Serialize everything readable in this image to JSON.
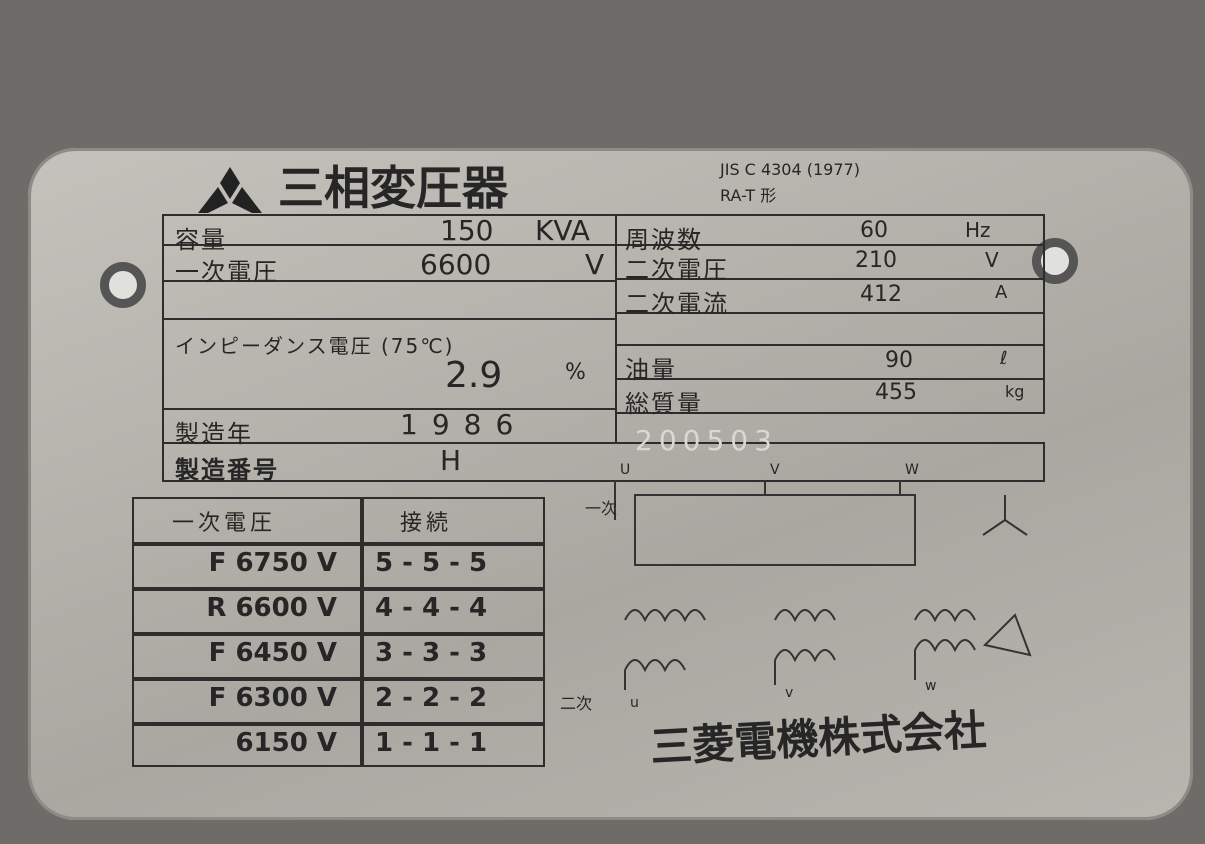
{
  "header": {
    "title": "三相変圧器",
    "standard": "JIS C 4304 (1977)",
    "model": "RA-T 形"
  },
  "ratings": {
    "capacity": {
      "label": "容量",
      "value": "150",
      "unit": "KVA"
    },
    "frequency": {
      "label": "周波数",
      "value": "60",
      "unit": "Hz"
    },
    "primary_voltage": {
      "label": "一次電圧",
      "value": "6600",
      "unit": "V"
    },
    "secondary_voltage": {
      "label": "二次電圧",
      "value": "210",
      "unit": "V"
    },
    "secondary_current": {
      "label": "二次電流",
      "value": "412",
      "unit": "A"
    },
    "impedance_voltage": {
      "label": "インピーダンス電圧 (75℃)",
      "value": "2.9",
      "unit": "%"
    },
    "oil_volume": {
      "label": "油量",
      "value": "90",
      "unit": "ℓ"
    },
    "total_mass": {
      "label": "総質量",
      "value": "455",
      "unit": "kg"
    },
    "year": {
      "label": "製造年",
      "value": "1986"
    },
    "serial": {
      "label": "製造番号",
      "prefix": "H",
      "value": "200503"
    }
  },
  "tap_table": {
    "header": [
      "一次電圧",
      "接続"
    ],
    "rows": [
      [
        "F 6750 V",
        "5 - 5 - 5"
      ],
      [
        "R 6600 V",
        "4 - 4 - 4"
      ],
      [
        "F 6450 V",
        "3 - 3 - 3"
      ],
      [
        "F 6300 V",
        "2 - 2 - 2"
      ],
      [
        "6150 V",
        "1 - 1 - 1"
      ]
    ]
  },
  "diagram": {
    "primary": "一次",
    "secondary": "二次",
    "primary_terminals": [
      "U",
      "V",
      "W"
    ],
    "secondary_terminals": [
      "u",
      "v",
      "w"
    ]
  },
  "maker": "三菱電機株式会社"
}
